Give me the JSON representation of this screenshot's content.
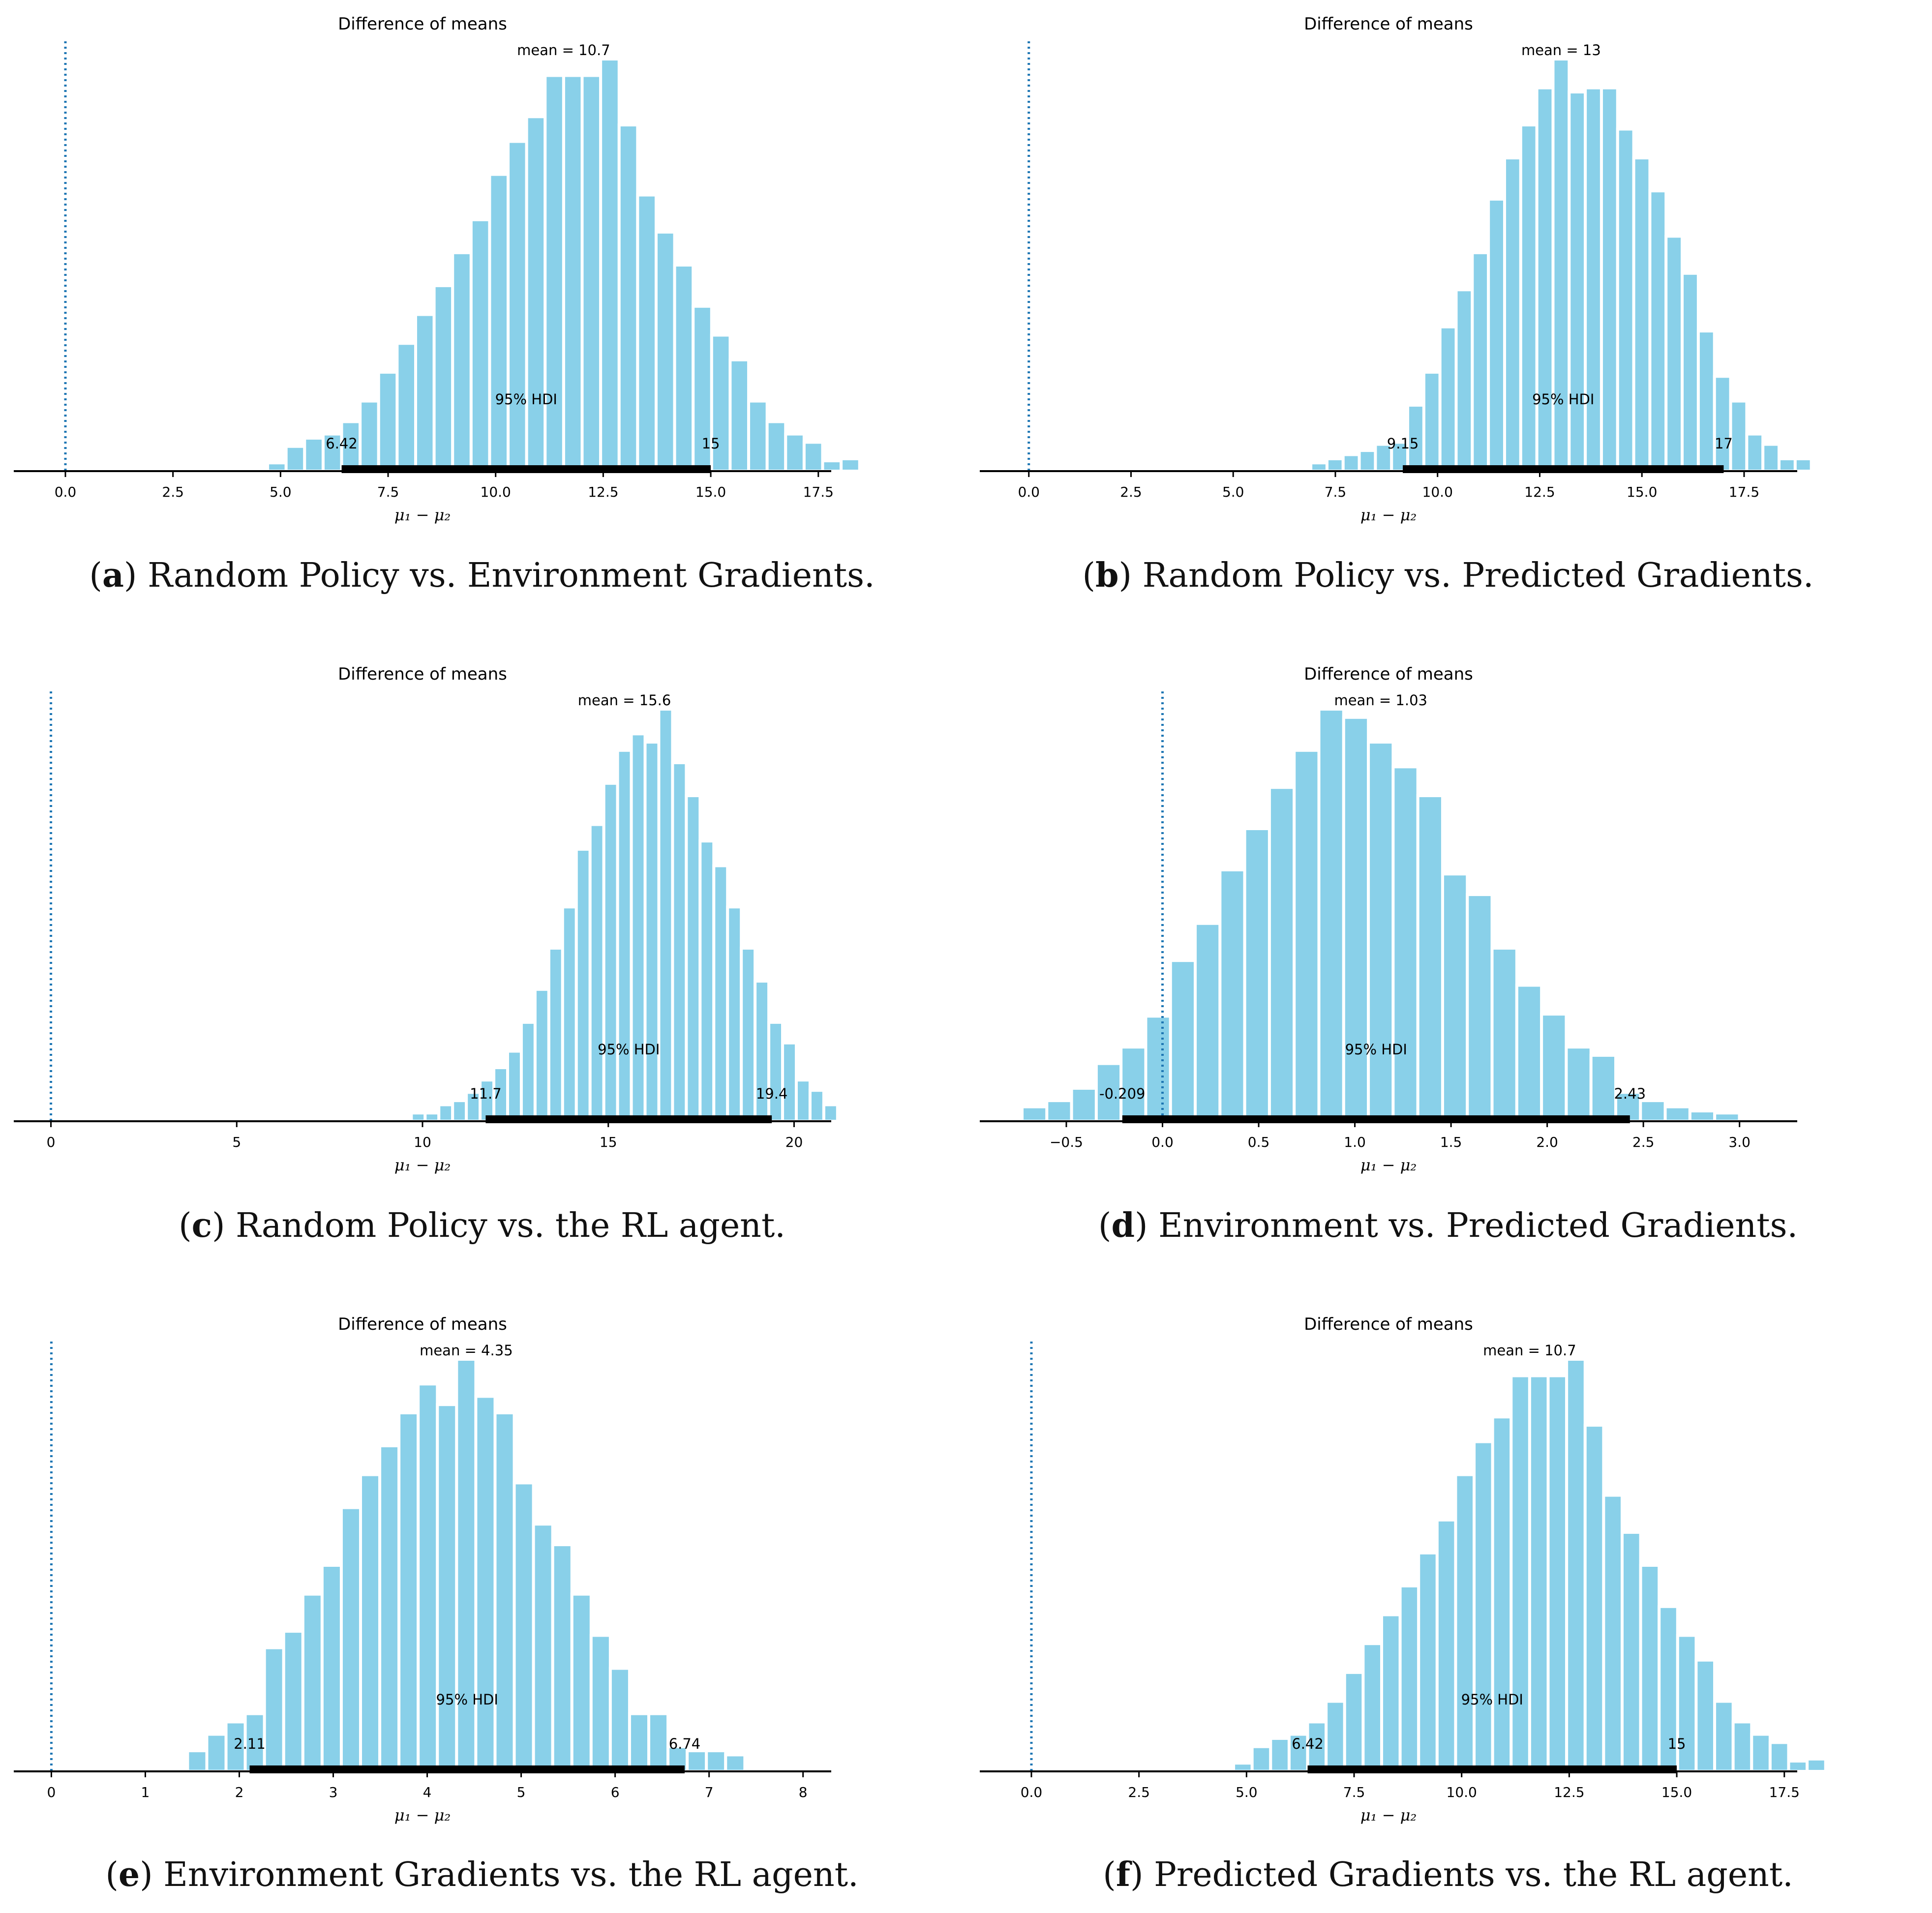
{
  "chart_data": [
    {
      "id": "a",
      "type": "bar",
      "title": "Difference of means",
      "xlabel": "μ₁ − μ₂",
      "mean_label": "mean = 10.7",
      "hdi_label": "95% HDI",
      "hdi": [
        6.42,
        15
      ],
      "hdi_low_label": "6.42",
      "hdi_high_label": "15",
      "ref_value": 0,
      "xlim": [
        -1.2,
        17.8
      ],
      "ticks": [
        0,
        2.5,
        5,
        7.5,
        10,
        12.5,
        15,
        17.5
      ],
      "tick_labels": [
        "0.0",
        "2.5",
        "5.0",
        "7.5",
        "10.0",
        "12.5",
        "15.0",
        "17.5"
      ],
      "bin_start": 4.7,
      "bin_width": 0.43,
      "values": [
        2,
        6,
        8,
        9,
        12,
        17,
        24,
        31,
        38,
        45,
        53,
        61,
        72,
        80,
        86,
        96,
        96,
        96,
        100,
        84,
        67,
        58,
        50,
        40,
        33,
        27,
        17,
        12,
        9,
        7,
        2.5,
        3
      ]
    },
    {
      "id": "b",
      "type": "bar",
      "title": "Difference of means",
      "xlabel": "μ₁ − μ₂",
      "mean_label": "mean = 13",
      "hdi_label": "95% HDI",
      "hdi": [
        9.15,
        17
      ],
      "hdi_low_label": "9.15",
      "hdi_high_label": "17",
      "ref_value": 0,
      "xlim": [
        -1.2,
        18.8
      ],
      "ticks": [
        0,
        2.5,
        5,
        7.5,
        10,
        12.5,
        15,
        17.5
      ],
      "tick_labels": [
        "0.0",
        "2.5",
        "5.0",
        "7.5",
        "10.0",
        "12.5",
        "15.0",
        "17.5"
      ],
      "bin_start": 6.9,
      "bin_width": 0.395,
      "values": [
        2,
        3,
        4,
        5,
        6.5,
        7,
        16,
        24,
        35,
        44,
        53,
        66,
        76,
        84,
        93,
        100,
        92,
        93,
        93,
        83,
        76,
        68,
        57,
        48,
        34,
        23,
        17,
        9,
        6.5,
        3,
        3
      ]
    },
    {
      "id": "c",
      "type": "bar",
      "title": "Difference of means",
      "xlabel": "μ₁ − μ₂",
      "mean_label": "mean = 15.6",
      "hdi_label": "95% HDI",
      "hdi": [
        11.7,
        19.4
      ],
      "hdi_low_label": "11.7",
      "hdi_high_label": "19.4",
      "ref_value": 0,
      "xlim": [
        -1.0,
        21.0
      ],
      "ticks": [
        0,
        5,
        10,
        15,
        20
      ],
      "tick_labels": [
        "0",
        "5",
        "10",
        "15",
        "20"
      ],
      "bin_start": 9.7,
      "bin_width": 0.37,
      "values": [
        2,
        2,
        4,
        5,
        7,
        10,
        13,
        17,
        24,
        32,
        42,
        52,
        66,
        72,
        82,
        90,
        94,
        92,
        100,
        87,
        79,
        68,
        62,
        52,
        42,
        34,
        24,
        19,
        10,
        7.5,
        4
      ]
    },
    {
      "id": "d",
      "type": "bar",
      "title": "Difference of means",
      "xlabel": "μ₁ − μ₂",
      "mean_label": "mean = 1.03",
      "hdi_label": "95% HDI",
      "hdi": [
        -0.209,
        2.43
      ],
      "hdi_low_label": "-0.209",
      "hdi_high_label": "2.43",
      "ref_value": 0,
      "xlim": [
        -0.95,
        3.3
      ],
      "ticks": [
        -0.5,
        0,
        0.5,
        1,
        1.5,
        2,
        2.5,
        3
      ],
      "tick_labels": [
        "−0.5",
        "0.0",
        "0.5",
        "1.0",
        "1.5",
        "2.0",
        "2.5",
        "3.0"
      ],
      "bin_start": -0.73,
      "bin_width": 0.1286,
      "values": [
        3.5,
        5,
        8,
        14,
        18,
        25.5,
        39,
        48,
        61,
        71,
        81,
        90,
        100,
        98,
        92,
        86,
        79,
        60,
        55,
        42,
        33,
        26,
        18,
        16,
        7,
        5,
        3.5,
        2.5,
        2
      ]
    },
    {
      "id": "e",
      "type": "bar",
      "title": "Difference of means",
      "xlabel": "μ₁ − μ₂",
      "mean_label": "mean = 4.35",
      "hdi_label": "95% HDI",
      "hdi": [
        2.11,
        6.74
      ],
      "hdi_low_label": "2.11",
      "hdi_high_label": "6.74",
      "ref_value": 0,
      "xlim": [
        -0.4,
        8.3
      ],
      "ticks": [
        0,
        1,
        2,
        3,
        4,
        5,
        6,
        7,
        8
      ],
      "tick_labels": [
        "0",
        "1",
        "2",
        "3",
        "4",
        "5",
        "6",
        "7",
        "8"
      ],
      "bin_start": 1.45,
      "bin_width": 0.2045,
      "values": [
        5,
        9,
        12,
        14,
        30,
        34,
        43,
        50,
        64,
        72,
        79,
        87,
        94,
        89,
        100,
        91,
        87,
        70,
        60,
        55,
        43,
        33,
        25,
        14,
        14,
        6,
        5,
        5,
        4
      ]
    },
    {
      "id": "f",
      "type": "bar",
      "title": "Difference of means",
      "xlabel": "μ₁ − μ₂",
      "mean_label": "mean = 10.7",
      "hdi_label": "95% HDI",
      "hdi": [
        6.42,
        15
      ],
      "hdi_low_label": "6.42",
      "hdi_high_label": "15",
      "ref_value": 0,
      "xlim": [
        -1.2,
        17.8
      ],
      "ticks": [
        0,
        2.5,
        5,
        7.5,
        10,
        12.5,
        15,
        17.5
      ],
      "tick_labels": [
        "0.0",
        "2.5",
        "5.0",
        "7.5",
        "10.0",
        "12.5",
        "15.0",
        "17.5"
      ],
      "bin_start": 4.7,
      "bin_width": 0.43,
      "values": [
        2,
        6,
        8,
        9,
        12,
        17,
        24,
        31,
        38,
        45,
        53,
        61,
        72,
        80,
        86,
        96,
        96,
        96,
        100,
        84,
        67,
        58,
        50,
        40,
        33,
        27,
        17,
        12,
        9,
        7,
        2.5,
        3
      ]
    }
  ],
  "captions": [
    {
      "letter": "a",
      "text": "Random Policy vs. Environment Gradients."
    },
    {
      "letter": "b",
      "text": "Random Policy vs. Predicted Gradients."
    },
    {
      "letter": "c",
      "text": "Random Policy vs. the RL agent."
    },
    {
      "letter": "d",
      "text": "Environment vs. Predicted Gradients."
    },
    {
      "letter": "e",
      "text": "Environment Gradients vs. the RL agent."
    },
    {
      "letter": "f",
      "text": "Predicted Gradients vs. the RL agent."
    }
  ],
  "colors": {
    "bar": "#89d0e9",
    "ref_line": "#1f77b4",
    "hdi": "#000000"
  }
}
